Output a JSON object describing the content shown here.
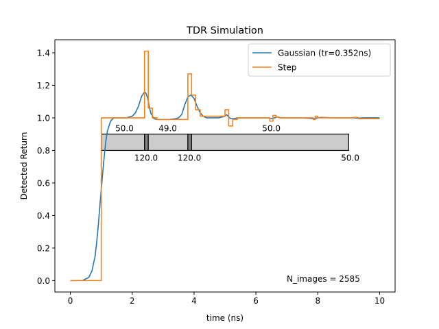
{
  "chart_data": {
    "type": "line",
    "title": "TDR Simulation",
    "xlabel": "time (ns)",
    "ylabel": "Detected Return",
    "xlim": [
      -0.5,
      10.5
    ],
    "ylim": [
      -0.07,
      1.48
    ],
    "xticks": [
      "0",
      "2",
      "4",
      "6",
      "8",
      "10"
    ],
    "yticks": [
      "0.0",
      "0.2",
      "0.4",
      "0.6",
      "0.8",
      "1.0",
      "1.2",
      "1.4"
    ],
    "grid": false,
    "legend_position": "top-right",
    "annotation": "N_images = 2585",
    "series": [
      {
        "name": "Gaussian (tr=0.352ns)",
        "color": "#1f77b4",
        "x": [
          0,
          0.4,
          0.6,
          0.7,
          0.8,
          0.85,
          0.9,
          0.95,
          1.0,
          1.05,
          1.1,
          1.15,
          1.2,
          1.3,
          1.4,
          1.6,
          1.8,
          2.0,
          2.1,
          2.2,
          2.3,
          2.4,
          2.45,
          2.5,
          2.55,
          2.6,
          2.7,
          2.8,
          2.9,
          3.0,
          3.2,
          3.4,
          3.5,
          3.6,
          3.7,
          3.8,
          3.9,
          4.0,
          4.1,
          4.2,
          4.3,
          4.4,
          4.6,
          4.8,
          5.0,
          5.05,
          5.1,
          5.15,
          5.2,
          5.3,
          5.4,
          5.6,
          5.8,
          6.0,
          6.4,
          6.5,
          6.6,
          6.7,
          6.8,
          7.0,
          7.5,
          7.9,
          8.0,
          8.1,
          8.5,
          9.0,
          9.2,
          9.3,
          9.5,
          10.0
        ],
        "y": [
          0.0,
          0.001,
          0.02,
          0.06,
          0.15,
          0.23,
          0.33,
          0.45,
          0.56,
          0.67,
          0.77,
          0.86,
          0.92,
          0.98,
          1.0,
          1.0,
          1.0,
          1.01,
          1.03,
          1.07,
          1.13,
          1.16,
          1.15,
          1.12,
          1.07,
          1.03,
          0.995,
          0.99,
          0.99,
          0.99,
          0.99,
          0.995,
          1.0,
          1.02,
          1.08,
          1.13,
          1.14,
          1.12,
          1.07,
          1.03,
          1.01,
          1.0,
          1.0,
          1.0,
          1.01,
          1.02,
          1.01,
          1.0,
          0.995,
          0.995,
          1.0,
          1.0,
          1.0,
          1.0,
          1.0,
          0.995,
          1.0,
          1.005,
          1.0,
          1.0,
          1.0,
          0.995,
          1.0,
          1.003,
          1.0,
          1.0,
          1.0,
          0.998,
          1.0,
          1.0
        ]
      },
      {
        "name": "Step",
        "color": "#ff7f0e",
        "x": [
          0,
          1.0,
          1.0,
          2.4,
          2.4,
          2.52,
          2.52,
          2.65,
          2.65,
          2.8,
          2.8,
          3.8,
          3.8,
          3.92,
          3.92,
          4.05,
          4.05,
          4.2,
          4.2,
          5.0,
          5.0,
          5.12,
          5.12,
          5.25,
          5.25,
          5.4,
          5.4,
          6.45,
          6.45,
          6.55,
          6.55,
          6.65,
          6.65,
          6.75,
          6.75,
          7.85,
          7.85,
          7.92,
          7.92,
          8.0,
          8.0,
          9.15,
          9.15,
          9.3,
          9.3,
          10.0
        ],
        "y": [
          0.0,
          0.0,
          1.0,
          1.0,
          1.41,
          1.41,
          1.06,
          1.06,
          1.0,
          1.0,
          0.99,
          0.99,
          1.27,
          1.27,
          1.14,
          1.14,
          1.05,
          1.05,
          1.01,
          1.01,
          1.05,
          1.05,
          0.95,
          0.95,
          0.99,
          0.99,
          1.0,
          1.0,
          0.98,
          0.98,
          1.015,
          1.015,
          1.005,
          1.005,
          1.0,
          1.0,
          0.99,
          0.99,
          1.01,
          1.01,
          1.0,
          1.0,
          1.003,
          1.003,
          0.995,
          0.995
        ]
      }
    ],
    "impedance_diagram": {
      "fill": "#cccccc",
      "dark_fill": "#808080",
      "y_bottom": 0.8,
      "y_top": 0.9,
      "segments": [
        {
          "x_start": 1.0,
          "x_end": 2.4,
          "dark": false
        },
        {
          "x_start": 2.4,
          "x_end": 2.52,
          "dark": true
        },
        {
          "x_start": 2.52,
          "x_end": 3.8,
          "dark": false
        },
        {
          "x_start": 3.8,
          "x_end": 3.92,
          "dark": true
        },
        {
          "x_start": 3.92,
          "x_end": 9.0,
          "dark": false
        }
      ],
      "labels_top": [
        {
          "text": "50.0",
          "x": 1.75
        },
        {
          "text": "49.0",
          "x": 3.15
        },
        {
          "text": "50.0",
          "x": 6.5
        }
      ],
      "labels_bottom": [
        {
          "text": "120.0",
          "x": 2.45
        },
        {
          "text": "120.0",
          "x": 3.85
        },
        {
          "text": "50.0",
          "x": 9.05
        }
      ]
    }
  }
}
